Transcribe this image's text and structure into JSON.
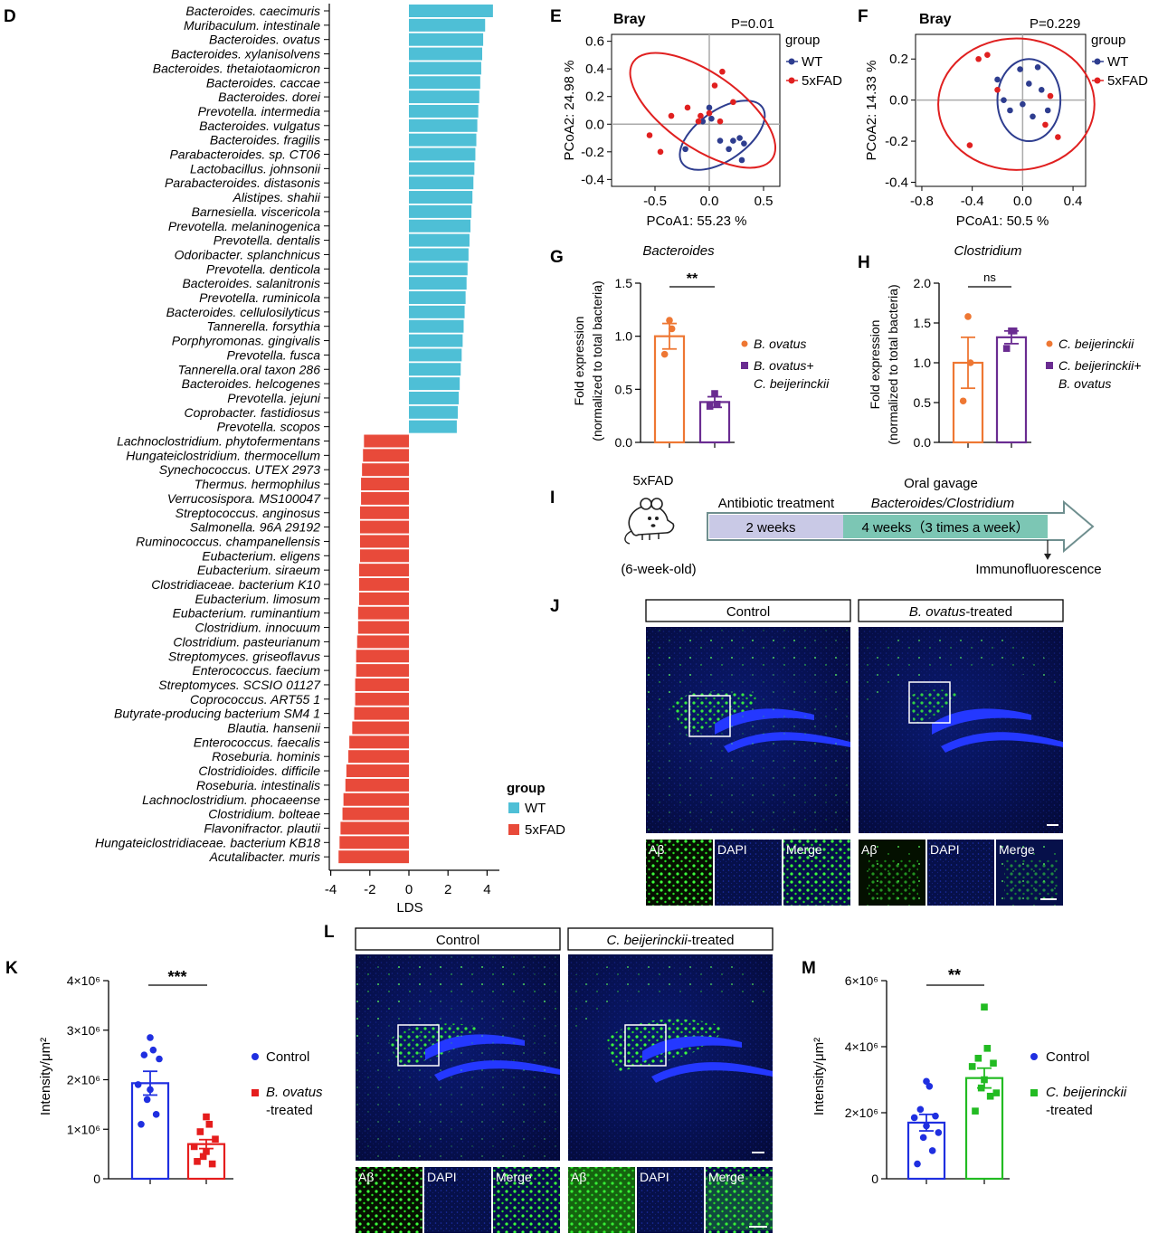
{
  "chart_data": [
    {
      "panel": "D",
      "type": "bar",
      "orientation": "horizontal",
      "xlabel": "LDS",
      "xlim": [
        -4,
        4.5
      ],
      "xticks": [
        "-4",
        "-2",
        "0",
        "2",
        "4"
      ],
      "legend": {
        "title": "group",
        "entries": [
          "WT",
          "5xFAD"
        ],
        "colors": [
          "#4ebfd6",
          "#e84a3a"
        ]
      },
      "categories": [
        "Bacteroides. caecimuris",
        "Muribaculum. intestinale",
        "Bacteroides. ovatus",
        "Bacteroides. xylanisolvens",
        "Bacteroides. thetaiotaomicron",
        "Bacteroides. caccae",
        "Bacteroides. dorei",
        "Prevotella. intermedia",
        "Bacteroides. vulgatus",
        "Bacteroides. fragilis",
        "Parabacteroides. sp. CT06",
        "Lactobacillus. johnsonii",
        "Parabacteroides. distasonis",
        "Alistipes. shahii",
        "Barnesiella. viscericola",
        "Prevotella. melaninogenica",
        "Prevotella. dentalis",
        "Odoribacter. splanchnicus",
        "Prevotella. denticola",
        "Bacteroides. salanitronis",
        "Prevotella. ruminicola",
        "Bacteroides. cellulosilyticus",
        "Tannerella. forsythia",
        "Porphyromonas. gingivalis",
        "Prevotella. fusca",
        "Tannerella.oral taxon 286",
        "Bacteroides. helcogenes",
        "Prevotella. jejuni",
        "Coprobacter. fastidiosus",
        "Prevotella. scopos",
        "Lachnoclostridium. phytofermentans",
        "Hungateiclostridium. thermocellum",
        "Synechococcus. UTEX 2973",
        "Thermus. hermophilus",
        "Verrucosispora. MS100047",
        "Streptococcus. anginosus",
        "Salmonella. 96A 29192",
        "Ruminococcus. champanellensis",
        "Eubacterium. eligens",
        "Eubacterium. siraeum",
        "Clostridiaceae. bacterium K10",
        "Eubacterium. limosum",
        "Eubacterium. ruminantium",
        "Clostridium. innocuum",
        "Clostridium. pasteurianum",
        "Streptomyces. griseoflavus",
        "Enterococcus. faecium",
        "Streptomyces. SCSIO 01127",
        "Coprococcus. ART55 1",
        "Butyrate-producing bacterium SM4 1",
        "Blautia. hansenii",
        "Enterococcus. faecalis",
        "Roseburia. hominis",
        "Clostridioides. difficile",
        "Roseburia. intestinalis",
        "Lachnoclostridium. phocaeense",
        "Clostridium. bolteae",
        "Flavonifractor. plautii",
        "Hungateiclostridiaceae. bacterium KB18",
        "Acutalibacter. muris"
      ],
      "values": [
        4.3,
        3.9,
        3.8,
        3.75,
        3.7,
        3.65,
        3.6,
        3.55,
        3.5,
        3.45,
        3.4,
        3.35,
        3.3,
        3.25,
        3.2,
        3.15,
        3.1,
        3.05,
        3.0,
        2.95,
        2.9,
        2.85,
        2.8,
        2.75,
        2.7,
        2.65,
        2.6,
        2.55,
        2.5,
        2.45,
        -2.3,
        -2.35,
        -2.4,
        -2.45,
        -2.45,
        -2.5,
        -2.5,
        -2.5,
        -2.5,
        -2.55,
        -2.55,
        -2.55,
        -2.6,
        -2.6,
        -2.65,
        -2.7,
        -2.7,
        -2.75,
        -2.75,
        -2.8,
        -2.9,
        -3.05,
        -3.1,
        -3.2,
        -3.25,
        -3.35,
        -3.4,
        -3.5,
        -3.55,
        -3.6
      ],
      "groups": [
        "WT",
        "WT",
        "WT",
        "WT",
        "WT",
        "WT",
        "WT",
        "WT",
        "WT",
        "WT",
        "WT",
        "WT",
        "WT",
        "WT",
        "WT",
        "WT",
        "WT",
        "WT",
        "WT",
        "WT",
        "WT",
        "WT",
        "WT",
        "WT",
        "WT",
        "WT",
        "WT",
        "WT",
        "WT",
        "WT",
        "5xFAD",
        "5xFAD",
        "5xFAD",
        "5xFAD",
        "5xFAD",
        "5xFAD",
        "5xFAD",
        "5xFAD",
        "5xFAD",
        "5xFAD",
        "5xFAD",
        "5xFAD",
        "5xFAD",
        "5xFAD",
        "5xFAD",
        "5xFAD",
        "5xFAD",
        "5xFAD",
        "5xFAD",
        "5xFAD",
        "5xFAD",
        "5xFAD",
        "5xFAD",
        "5xFAD",
        "5xFAD",
        "5xFAD",
        "5xFAD",
        "5xFAD",
        "5xFAD",
        "5xFAD"
      ]
    },
    {
      "panel": "E",
      "type": "scatter",
      "title": "Bray",
      "pvalue": "P=0.01",
      "xlabel": "PCoA1:  55.23 %",
      "ylabel": "PCoA2:  24.98 %",
      "xlim": [
        -0.9,
        0.65
      ],
      "ylim": [
        -0.45,
        0.65
      ],
      "xticks": [
        "-0.5",
        "0.0",
        "0.5"
      ],
      "yticks": [
        "-0.4",
        "-0.2",
        "0.0",
        "0.2",
        "0.4",
        "0.6"
      ],
      "legend": {
        "title": "group",
        "entries": [
          "WT",
          "5xFAD"
        ]
      },
      "series": [
        {
          "name": "WT",
          "color": "#2e3d8f",
          "ellipse": {
            "cx": 0.12,
            "cy": -0.08,
            "rx": 0.45,
            "ry": 0.18,
            "angle": -35
          },
          "x": [
            -0.22,
            0.0,
            0.02,
            -0.06,
            0.1,
            0.22,
            0.28,
            0.32,
            0.3,
            0.18
          ],
          "y": [
            -0.18,
            0.12,
            0.04,
            0.02,
            -0.12,
            -0.12,
            -0.1,
            -0.14,
            -0.26,
            -0.18
          ]
        },
        {
          "name": "5xFAD",
          "color": "#e02020",
          "ellipse": {
            "cx": -0.06,
            "cy": 0.1,
            "rx": 0.78,
            "ry": 0.27,
            "angle": 35
          },
          "x": [
            -0.55,
            -0.45,
            -0.35,
            -0.1,
            0.12,
            0.05,
            -0.08,
            0.22,
            -0.2,
            0.0,
            0.1
          ],
          "y": [
            -0.08,
            -0.2,
            0.06,
            0.02,
            0.38,
            0.28,
            0.06,
            0.16,
            0.12,
            0.08,
            0.02
          ]
        }
      ]
    },
    {
      "panel": "F",
      "type": "scatter",
      "title": "Bray",
      "pvalue": "P=0.229",
      "xlabel": "PCoA1:  50.5 %",
      "ylabel": "PCoA2:  14.33 %",
      "xlim": [
        -0.85,
        0.5
      ],
      "ylim": [
        -0.42,
        0.32
      ],
      "xticks": [
        "-0.8",
        "-0.4",
        "0.0",
        "0.4"
      ],
      "yticks": [
        "-0.4",
        "-0.2",
        "0.0",
        "0.2"
      ],
      "legend": {
        "title": "group",
        "entries": [
          "WT",
          "5xFAD"
        ]
      },
      "series": [
        {
          "name": "WT",
          "color": "#2e3d8f",
          "ellipse": {
            "cx": 0.05,
            "cy": 0.0,
            "rx": 0.25,
            "ry": 0.2,
            "angle": 0
          },
          "x": [
            -0.2,
            -0.15,
            -0.02,
            0.05,
            0.12,
            0.15,
            0.2,
            0.08,
            -0.1,
            0.0
          ],
          "y": [
            0.1,
            0.0,
            0.15,
            0.08,
            0.16,
            0.05,
            -0.05,
            -0.08,
            -0.05,
            -0.02
          ]
        },
        {
          "name": "5xFAD",
          "color": "#e02020",
          "ellipse": {
            "cx": -0.05,
            "cy": -0.02,
            "rx": 0.62,
            "ry": 0.32,
            "angle": 0
          },
          "x": [
            -0.28,
            -0.35,
            -0.42,
            0.22,
            0.28,
            0.18,
            -0.2
          ],
          "y": [
            0.22,
            0.2,
            -0.22,
            0.02,
            -0.18,
            -0.12,
            0.05
          ]
        }
      ]
    },
    {
      "panel": "G",
      "type": "bar",
      "title": "Bacteroides",
      "ylabel": "Fold expression (normalized to total bacteria)",
      "ylim": [
        0,
        1.5
      ],
      "yticks": [
        "0.0",
        "0.5",
        "1.0",
        "1.5"
      ],
      "significance": "**",
      "categories": [
        "B. ovatus",
        "B. ovatus+ C. beijerinckii"
      ],
      "legend": [
        "B. ovatus",
        "B. ovatus+",
        "C. beijerinckii"
      ],
      "series": [
        {
          "name": "B. ovatus",
          "color": "#ee7733",
          "mean": 1.0,
          "sem": 0.12,
          "points": [
            1.15,
            1.07,
            0.83
          ]
        },
        {
          "name": "B. ovatus+ C. beijerinckii",
          "color": "#6a2c91",
          "mean": 0.38,
          "sem": 0.05,
          "points": [
            0.46,
            0.36,
            0.34
          ]
        }
      ]
    },
    {
      "panel": "H",
      "type": "bar",
      "title": "Clostridium",
      "ylabel": "Fold expression (normalized to total bacteria)",
      "ylim": [
        0,
        2.0
      ],
      "yticks": [
        "0.0",
        "0.5",
        "1.0",
        "1.5",
        "2.0"
      ],
      "significance": "ns",
      "categories": [
        "C. beijerinckii",
        "C. beijerinckii+ B. ovatus"
      ],
      "legend": [
        "C. beijerinckii",
        "C. beijerinckii+",
        "B. ovatus"
      ],
      "series": [
        {
          "name": "C. beijerinckii",
          "color": "#ee7733",
          "mean": 1.0,
          "sem": 0.32,
          "points": [
            1.58,
            1.0,
            0.52
          ]
        },
        {
          "name": "C. beijerinckii+ B. ovatus",
          "color": "#6a2c91",
          "mean": 1.32,
          "sem": 0.08,
          "points": [
            1.4,
            1.4,
            1.18
          ]
        }
      ]
    },
    {
      "panel": "K",
      "type": "bar",
      "ylabel": "Intensity/μm²",
      "ylim": [
        0,
        4000000
      ],
      "yticks": [
        "0",
        "1×10⁶",
        "2×10⁶",
        "3×10⁶",
        "4×10⁶"
      ],
      "significance": "***",
      "legend": [
        "Control",
        "B. ovatus",
        "-treated"
      ],
      "series": [
        {
          "name": "Control",
          "color": "#1f2fe0",
          "marker": "circle",
          "mean": 1930000,
          "sem": 240000,
          "points": [
            2850000,
            2600000,
            2500000,
            2420000,
            1900000,
            1800000,
            1600000,
            1300000,
            1100000
          ]
        },
        {
          "name": "B. ovatus -treated",
          "color": "#e51d1d",
          "marker": "square",
          "mean": 700000,
          "sem": 90000,
          "points": [
            1250000,
            1100000,
            950000,
            800000,
            650000,
            550000,
            450000,
            300000,
            350000
          ]
        }
      ]
    },
    {
      "panel": "M",
      "type": "bar",
      "ylabel": "Intensity/μm²",
      "ylim": [
        0,
        6000000
      ],
      "yticks": [
        "0",
        "2×10⁶",
        "4×10⁶",
        "6×10⁶"
      ],
      "significance": "**",
      "legend": [
        "Control",
        "C. beijerinckii",
        "-treated"
      ],
      "series": [
        {
          "name": "Control",
          "color": "#1f2fe0",
          "marker": "circle",
          "mean": 1700000,
          "sem": 250000,
          "points": [
            2950000,
            2800000,
            2100000,
            1900000,
            1850000,
            1600000,
            1250000,
            850000,
            450000,
            1400000
          ]
        },
        {
          "name": "C. beijerinckii -treated",
          "color": "#22bb22",
          "marker": "square",
          "mean": 3050000,
          "sem": 300000,
          "points": [
            5200000,
            3950000,
            3650000,
            3500000,
            3400000,
            3000000,
            2750000,
            2500000,
            2050000,
            2600000
          ]
        }
      ]
    }
  ],
  "panel_letters": {
    "D": "D",
    "E": "E",
    "F": "F",
    "G": "G",
    "H": "H",
    "I": "I",
    "J": "J",
    "K": "K",
    "L": "L",
    "M": "M"
  },
  "schematic": {
    "mouse_label": "5xFAD",
    "age_label": "(6-week-old)",
    "phase1_title": "Antibiotic treatment",
    "phase1_duration": "2 weeks",
    "phase2_title": "Oral gavage",
    "phase2_subtitle": "Bacteroides/Clostridium",
    "phase2_duration": "4 weeks（3 times a week）",
    "endpoint": "Immunofluorescence",
    "colors": {
      "phase1": "#c9c9e6",
      "phase2": "#7cc6b4",
      "arrow": "#6f8f8f"
    }
  },
  "microscopy": {
    "J": {
      "left_header": "Control",
      "right_header_italic": "B. ovatus",
      "right_header_rest": "-treated",
      "channels": [
        "Aβ",
        "DAPI",
        "Merge"
      ]
    },
    "L": {
      "left_header": "Control",
      "right_header_italic": "C. beijerinckii",
      "right_header_rest": "-treated",
      "channels": [
        "Aβ",
        "DAPI",
        "Merge"
      ]
    }
  }
}
